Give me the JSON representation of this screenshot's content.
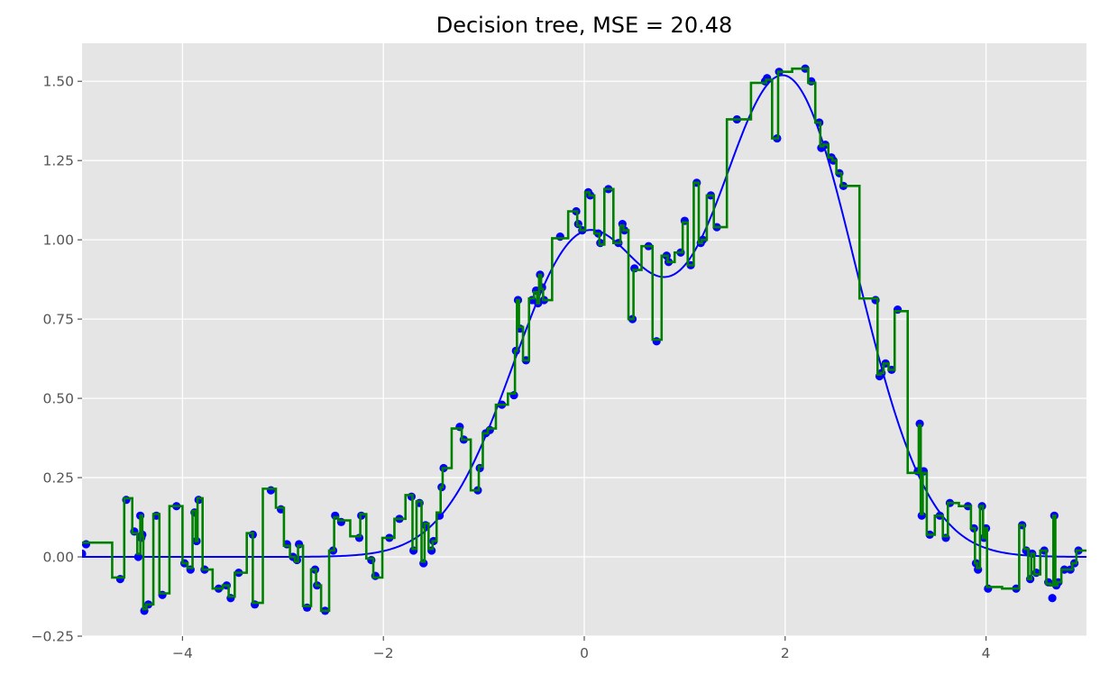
{
  "chart_data": {
    "type": "scatter",
    "title": "Decision tree, MSE = 20.48",
    "xlabel": "",
    "ylabel": "",
    "xlim": [
      -5,
      5
    ],
    "ylim": [
      -0.25,
      1.62
    ],
    "x_ticks": [
      -4,
      -2,
      0,
      2,
      4
    ],
    "x_tick_labels": [
      "−4",
      "−2",
      "0",
      "2",
      "4"
    ],
    "y_ticks": [
      -0.25,
      0,
      0.25,
      0.5,
      0.75,
      1.0,
      1.25,
      1.5
    ],
    "y_tick_labels": [
      "−0.25",
      "0.00",
      "0.25",
      "0.50",
      "0.75",
      "1.00",
      "1.25",
      "1.50"
    ],
    "grid": true,
    "background_color": "#e5e5e5",
    "colors": {
      "samples": "#0000ff",
      "true_function": "#0000ff",
      "prediction": "#008000"
    },
    "true_function": {
      "formula": "exp(-x^2) + 1.5*exp(-(x-2)^2)",
      "x_range": [
        -5,
        5
      ]
    },
    "samples": [
      [
        -5.0,
        0.01
      ],
      [
        -4.96,
        0.04
      ],
      [
        -4.62,
        -0.07
      ],
      [
        -4.56,
        0.18
      ],
      [
        -4.48,
        0.08
      ],
      [
        -4.44,
        0.0
      ],
      [
        -4.42,
        0.13
      ],
      [
        -4.41,
        0.06
      ],
      [
        -4.4,
        0.07
      ],
      [
        -4.38,
        -0.17
      ],
      [
        -4.34,
        -0.15
      ],
      [
        -4.26,
        0.13
      ],
      [
        -4.2,
        -0.12
      ],
      [
        -4.06,
        0.16
      ],
      [
        -3.98,
        -0.02
      ],
      [
        -3.92,
        -0.04
      ],
      [
        -3.88,
        0.14
      ],
      [
        -3.86,
        0.05
      ],
      [
        -3.84,
        0.18
      ],
      [
        -3.78,
        -0.04
      ],
      [
        -3.64,
        -0.1
      ],
      [
        -3.56,
        -0.09
      ],
      [
        -3.52,
        -0.13
      ],
      [
        -3.44,
        -0.05
      ],
      [
        -3.3,
        0.07
      ],
      [
        -3.28,
        -0.15
      ],
      [
        -3.12,
        0.21
      ],
      [
        -3.02,
        0.15
      ],
      [
        -2.96,
        0.04
      ],
      [
        -2.9,
        0.0
      ],
      [
        -2.86,
        -0.01
      ],
      [
        -2.84,
        0.04
      ],
      [
        -2.76,
        -0.16
      ],
      [
        -2.68,
        -0.04
      ],
      [
        -2.66,
        -0.09
      ],
      [
        -2.58,
        -0.17
      ],
      [
        -2.5,
        0.02
      ],
      [
        -2.48,
        0.13
      ],
      [
        -2.42,
        0.11
      ],
      [
        -2.24,
        0.06
      ],
      [
        -2.22,
        0.13
      ],
      [
        -2.12,
        -0.01
      ],
      [
        -2.08,
        -0.06
      ],
      [
        -1.94,
        0.06
      ],
      [
        -1.84,
        0.12
      ],
      [
        -1.72,
        0.19
      ],
      [
        -1.7,
        0.02
      ],
      [
        -1.64,
        0.17
      ],
      [
        -1.6,
        -0.02
      ],
      [
        -1.58,
        0.1
      ],
      [
        -1.52,
        0.02
      ],
      [
        -1.5,
        0.05
      ],
      [
        -1.44,
        0.13
      ],
      [
        -1.42,
        0.22
      ],
      [
        -1.4,
        0.28
      ],
      [
        -1.24,
        0.41
      ],
      [
        -1.2,
        0.37
      ],
      [
        -1.06,
        0.21
      ],
      [
        -1.04,
        0.28
      ],
      [
        -0.98,
        0.39
      ],
      [
        -0.94,
        0.4
      ],
      [
        -0.82,
        0.48
      ],
      [
        -0.7,
        0.51
      ],
      [
        -0.68,
        0.65
      ],
      [
        -0.66,
        0.81
      ],
      [
        -0.64,
        0.72
      ],
      [
        -0.58,
        0.62
      ],
      [
        -0.52,
        0.81
      ],
      [
        -0.48,
        0.84
      ],
      [
        -0.46,
        0.8
      ],
      [
        -0.44,
        0.89
      ],
      [
        -0.42,
        0.85
      ],
      [
        -0.4,
        0.81
      ],
      [
        -0.24,
        1.01
      ],
      [
        -0.08,
        1.09
      ],
      [
        -0.06,
        1.05
      ],
      [
        -0.02,
        1.03
      ],
      [
        0.04,
        1.15
      ],
      [
        0.06,
        1.14
      ],
      [
        0.14,
        1.02
      ],
      [
        0.16,
        0.99
      ],
      [
        0.24,
        1.16
      ],
      [
        0.34,
        0.99
      ],
      [
        0.38,
        1.05
      ],
      [
        0.4,
        1.03
      ],
      [
        0.48,
        0.75
      ],
      [
        0.5,
        0.91
      ],
      [
        0.64,
        0.98
      ],
      [
        0.72,
        0.68
      ],
      [
        0.82,
        0.95
      ],
      [
        0.84,
        0.93
      ],
      [
        0.96,
        0.96
      ],
      [
        1.0,
        1.06
      ],
      [
        1.06,
        0.92
      ],
      [
        1.12,
        1.18
      ],
      [
        1.16,
        0.99
      ],
      [
        1.18,
        1.0
      ],
      [
        1.26,
        1.14
      ],
      [
        1.32,
        1.04
      ],
      [
        1.52,
        1.38
      ],
      [
        1.8,
        1.5
      ],
      [
        1.82,
        1.51
      ],
      [
        1.92,
        1.32
      ],
      [
        1.94,
        1.53
      ],
      [
        2.2,
        1.54
      ],
      [
        2.26,
        1.5
      ],
      [
        2.34,
        1.37
      ],
      [
        2.36,
        1.29
      ],
      [
        2.4,
        1.3
      ],
      [
        2.46,
        1.26
      ],
      [
        2.48,
        1.25
      ],
      [
        2.54,
        1.21
      ],
      [
        2.58,
        1.17
      ],
      [
        2.9,
        0.81
      ],
      [
        2.94,
        0.57
      ],
      [
        2.96,
        0.58
      ],
      [
        3.0,
        0.61
      ],
      [
        3.06,
        0.59
      ],
      [
        3.12,
        0.78
      ],
      [
        3.32,
        0.27
      ],
      [
        3.34,
        0.42
      ],
      [
        3.36,
        0.13
      ],
      [
        3.38,
        0.27
      ],
      [
        3.44,
        0.07
      ],
      [
        3.54,
        0.13
      ],
      [
        3.6,
        0.06
      ],
      [
        3.64,
        0.17
      ],
      [
        3.82,
        0.16
      ],
      [
        3.88,
        0.09
      ],
      [
        3.9,
        -0.02
      ],
      [
        3.92,
        -0.04
      ],
      [
        3.96,
        0.16
      ],
      [
        3.98,
        0.06
      ],
      [
        4.0,
        0.09
      ],
      [
        4.02,
        -0.1
      ],
      [
        4.3,
        -0.1
      ],
      [
        4.36,
        0.1
      ],
      [
        4.4,
        0.02
      ],
      [
        4.44,
        -0.07
      ],
      [
        4.46,
        0.01
      ],
      [
        4.5,
        -0.05
      ],
      [
        4.58,
        0.02
      ],
      [
        4.62,
        -0.08
      ],
      [
        4.66,
        -0.13
      ],
      [
        4.68,
        0.13
      ],
      [
        4.7,
        -0.09
      ],
      [
        4.72,
        -0.08
      ],
      [
        4.78,
        -0.04
      ],
      [
        4.84,
        -0.04
      ],
      [
        4.88,
        -0.02
      ],
      [
        4.92,
        0.02
      ]
    ],
    "prediction_step": [
      [
        -5.0,
        0.045
      ],
      [
        -4.88,
        0.045
      ],
      [
        -4.7,
        -0.065
      ],
      [
        -4.58,
        0.185
      ],
      [
        -4.5,
        0.075
      ],
      [
        -4.45,
        0.01
      ],
      [
        -4.42,
        0.13
      ],
      [
        -4.4,
        0.065
      ],
      [
        -4.39,
        -0.165
      ],
      [
        -4.36,
        -0.15
      ],
      [
        -4.29,
        0.135
      ],
      [
        -4.23,
        -0.115
      ],
      [
        -4.13,
        0.16
      ],
      [
        -4.0,
        -0.02
      ],
      [
        -3.95,
        -0.035
      ],
      [
        -3.9,
        0.145
      ],
      [
        -3.87,
        0.05
      ],
      [
        -3.85,
        0.185
      ],
      [
        -3.8,
        -0.04
      ],
      [
        -3.7,
        -0.1
      ],
      [
        -3.6,
        -0.09
      ],
      [
        -3.54,
        -0.125
      ],
      [
        -3.48,
        -0.05
      ],
      [
        -3.36,
        0.075
      ],
      [
        -3.3,
        -0.145
      ],
      [
        -3.2,
        0.215
      ],
      [
        -3.07,
        0.155
      ],
      [
        -2.99,
        0.035
      ],
      [
        -2.93,
        0.0
      ],
      [
        -2.88,
        -0.015
      ],
      [
        -2.85,
        0.035
      ],
      [
        -2.8,
        -0.155
      ],
      [
        -2.72,
        -0.04
      ],
      [
        -2.67,
        -0.09
      ],
      [
        -2.62,
        -0.17
      ],
      [
        -2.54,
        0.02
      ],
      [
        -2.49,
        0.125
      ],
      [
        -2.45,
        0.115
      ],
      [
        -2.33,
        0.065
      ],
      [
        -2.23,
        0.135
      ],
      [
        -2.17,
        -0.005
      ],
      [
        -2.1,
        -0.065
      ],
      [
        -2.01,
        0.06
      ],
      [
        -1.89,
        0.12
      ],
      [
        -1.78,
        0.195
      ],
      [
        -1.71,
        0.025
      ],
      [
        -1.67,
        0.175
      ],
      [
        -1.62,
        -0.015
      ],
      [
        -1.59,
        0.105
      ],
      [
        -1.55,
        0.025
      ],
      [
        -1.51,
        0.05
      ],
      [
        -1.47,
        0.14
      ],
      [
        -1.43,
        0.22
      ],
      [
        -1.41,
        0.28
      ],
      [
        -1.32,
        0.405
      ],
      [
        -1.22,
        0.37
      ],
      [
        -1.13,
        0.21
      ],
      [
        -1.05,
        0.285
      ],
      [
        -1.01,
        0.39
      ],
      [
        -0.96,
        0.405
      ],
      [
        -0.88,
        0.48
      ],
      [
        -0.76,
        0.515
      ],
      [
        -0.69,
        0.65
      ],
      [
        -0.67,
        0.81
      ],
      [
        -0.65,
        0.725
      ],
      [
        -0.61,
        0.62
      ],
      [
        -0.55,
        0.815
      ],
      [
        -0.5,
        0.835
      ],
      [
        -0.47,
        0.8
      ],
      [
        -0.45,
        0.89
      ],
      [
        -0.43,
        0.845
      ],
      [
        -0.41,
        0.81
      ],
      [
        -0.32,
        1.005
      ],
      [
        -0.16,
        1.09
      ],
      [
        -0.07,
        1.045
      ],
      [
        -0.04,
        1.03
      ],
      [
        0.01,
        1.15
      ],
      [
        0.05,
        1.14
      ],
      [
        0.1,
        1.02
      ],
      [
        0.15,
        0.985
      ],
      [
        0.2,
        1.16
      ],
      [
        0.29,
        0.99
      ],
      [
        0.36,
        1.045
      ],
      [
        0.39,
        1.03
      ],
      [
        0.44,
        0.75
      ],
      [
        0.49,
        0.905
      ],
      [
        0.57,
        0.98
      ],
      [
        0.68,
        0.685
      ],
      [
        0.77,
        0.95
      ],
      [
        0.83,
        0.93
      ],
      [
        0.9,
        0.96
      ],
      [
        0.98,
        1.055
      ],
      [
        1.03,
        0.92
      ],
      [
        1.09,
        1.18
      ],
      [
        1.14,
        0.99
      ],
      [
        1.17,
        1.0
      ],
      [
        1.22,
        1.14
      ],
      [
        1.29,
        1.04
      ],
      [
        1.42,
        1.38
      ],
      [
        1.66,
        1.495
      ],
      [
        1.81,
        1.505
      ],
      [
        1.87,
        1.32
      ],
      [
        1.93,
        1.53
      ],
      [
        2.07,
        1.54
      ],
      [
        2.23,
        1.495
      ],
      [
        2.3,
        1.37
      ],
      [
        2.35,
        1.295
      ],
      [
        2.38,
        1.3
      ],
      [
        2.43,
        1.26
      ],
      [
        2.47,
        1.25
      ],
      [
        2.51,
        1.21
      ],
      [
        2.56,
        1.17
      ],
      [
        2.74,
        0.815
      ],
      [
        2.92,
        0.575
      ],
      [
        2.95,
        0.58
      ],
      [
        2.98,
        0.61
      ],
      [
        3.03,
        0.59
      ],
      [
        3.09,
        0.775
      ],
      [
        3.22,
        0.265
      ],
      [
        3.33,
        0.415
      ],
      [
        3.35,
        0.135
      ],
      [
        3.37,
        0.265
      ],
      [
        3.41,
        0.07
      ],
      [
        3.49,
        0.13
      ],
      [
        3.57,
        0.065
      ],
      [
        3.62,
        0.17
      ],
      [
        3.73,
        0.16
      ],
      [
        3.85,
        0.09
      ],
      [
        3.89,
        -0.02
      ],
      [
        3.91,
        -0.035
      ],
      [
        3.94,
        0.16
      ],
      [
        3.97,
        0.06
      ],
      [
        3.99,
        0.09
      ],
      [
        4.01,
        -0.095
      ],
      [
        4.16,
        -0.1
      ],
      [
        4.33,
        0.1
      ],
      [
        4.38,
        0.025
      ],
      [
        4.42,
        -0.07
      ],
      [
        4.45,
        0.01
      ],
      [
        4.48,
        -0.055
      ],
      [
        4.54,
        0.02
      ],
      [
        4.6,
        -0.085
      ],
      [
        4.64,
        -0.09
      ],
      [
        4.67,
        0.13
      ],
      [
        4.69,
        -0.09
      ],
      [
        4.71,
        -0.08
      ],
      [
        4.75,
        -0.04
      ],
      [
        4.81,
        -0.04
      ],
      [
        4.86,
        -0.02
      ],
      [
        4.9,
        0.02
      ],
      [
        4.96,
        0.02
      ]
    ]
  }
}
